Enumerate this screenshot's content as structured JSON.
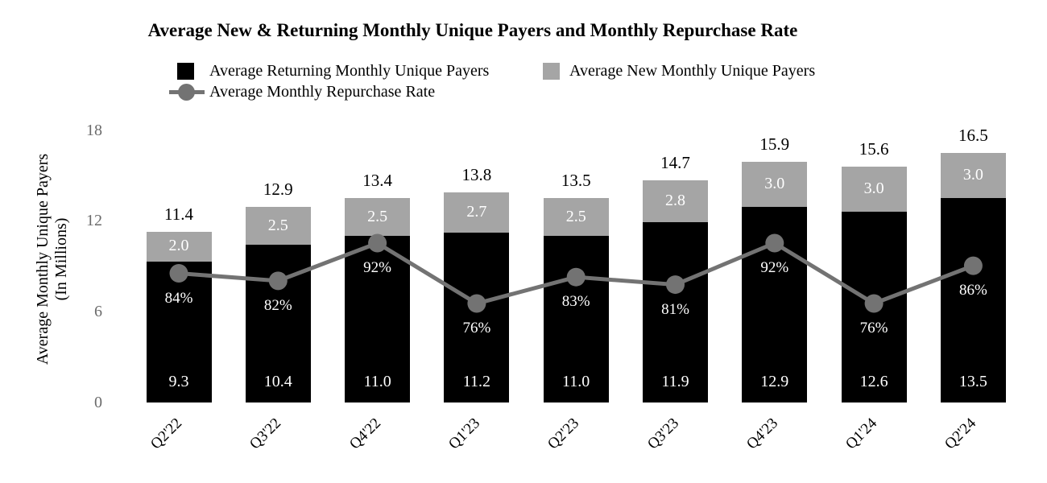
{
  "title": "Average New & Returning Monthly Unique Payers and Monthly Repurchase Rate",
  "y_axis": {
    "title_line1": "Average Monthly Unique Payers",
    "title_line2": "(In Millions)",
    "ticks": [
      0,
      6,
      12,
      18
    ],
    "max": 18
  },
  "legend": {
    "items": [
      {
        "label": "Average Returning Monthly Unique Payers",
        "swatch": "black-square"
      },
      {
        "label": "Average New Monthly Unique Payers",
        "swatch": "gray-square"
      },
      {
        "label": "Average Monthly Repurchase Rate",
        "swatch": "line-with-circle-marker"
      }
    ]
  },
  "colors": {
    "returning_bar": "#000000",
    "new_bar": "#a5a5a5",
    "rate_line": "#737373",
    "y_tick_text": "#6b6b6b",
    "on_bar_text": "#ffffff",
    "text": "#000000",
    "background": "#ffffff"
  },
  "chart_data": {
    "type": "bar",
    "subtype": "stacked-bars-with-line-overlay",
    "title": "Average New & Returning Monthly Unique Payers and Monthly Repurchase Rate",
    "xlabel": "",
    "ylabel": "Average Monthly Unique Payers (In Millions)",
    "ylim": [
      0,
      18
    ],
    "grid": false,
    "legend_position": "top",
    "categories": [
      "Q2'22",
      "Q3'22",
      "Q4'22",
      "Q1'23",
      "Q2'23",
      "Q3'23",
      "Q4'23",
      "Q1'24",
      "Q2'24"
    ],
    "series": [
      {
        "name": "Average Returning Monthly Unique Payers",
        "type": "bar-stack-bottom",
        "values": [
          9.3,
          10.4,
          11.0,
          11.2,
          11.0,
          11.9,
          12.9,
          12.6,
          13.5
        ]
      },
      {
        "name": "Average New Monthly Unique Payers",
        "type": "bar-stack-top",
        "values": [
          2.0,
          2.5,
          2.5,
          2.7,
          2.5,
          2.8,
          3.0,
          3.0,
          3.0
        ]
      },
      {
        "name": "Average Monthly Repurchase Rate",
        "type": "line",
        "unit": "%",
        "values": [
          84,
          82,
          92,
          76,
          83,
          81,
          92,
          76,
          86
        ]
      }
    ],
    "totals": [
      11.4,
      12.9,
      13.4,
      13.8,
      13.5,
      14.7,
      15.9,
      15.6,
      16.5
    ]
  }
}
